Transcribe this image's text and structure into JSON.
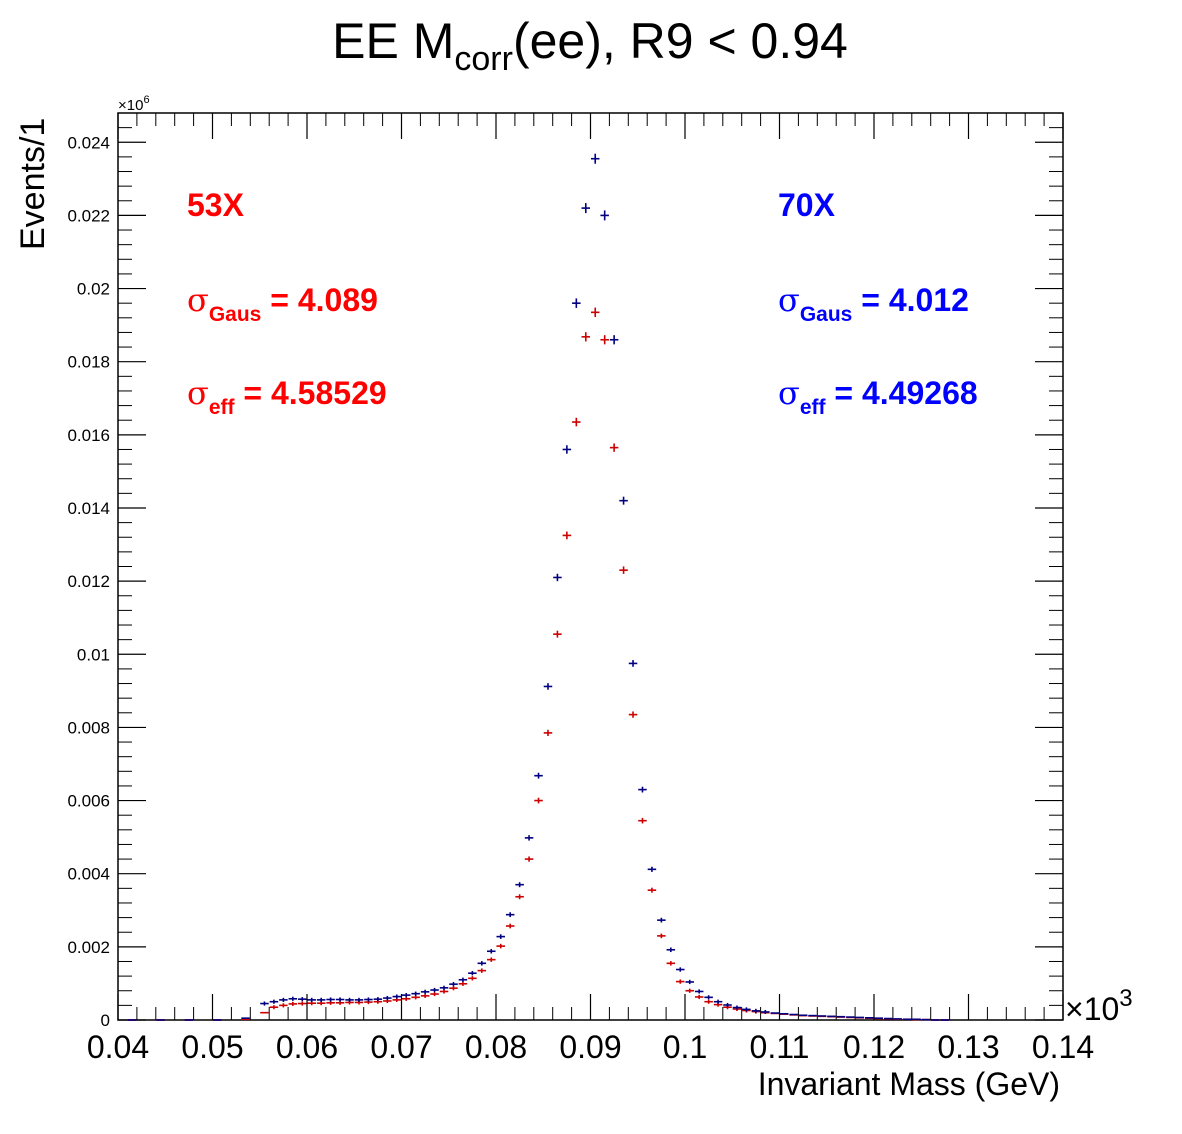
{
  "chart_data": {
    "type": "scatter",
    "title": {
      "main": "EE M",
      "sub": "corr",
      "rest": "(ee), R9 < 0.94"
    },
    "xlabel": "Invariant Mass (GeV)",
    "ylabel": "Events/1",
    "x_exponent_label": "×10",
    "x_exponent_power": "3",
    "y_exponent_label": "×10",
    "y_exponent_power": "6",
    "xlim": [
      0.04,
      0.14
    ],
    "ylim": [
      0,
      0.0248
    ],
    "grid": false,
    "x_ticks": [
      "0.04",
      "0.05",
      "0.06",
      "0.07",
      "0.08",
      "0.09",
      "0.1",
      "0.11",
      "0.12",
      "0.13",
      "0.14"
    ],
    "y_ticks": [
      "0",
      "0.002",
      "0.004",
      "0.006",
      "0.008",
      "0.01",
      "0.012",
      "0.014",
      "0.016",
      "0.018",
      "0.02",
      "0.022",
      "0.024"
    ],
    "annotations": {
      "left": {
        "color": "#ff0000",
        "tag": "53X",
        "gaus_symbol": "σ",
        "gaus_sub": "Gaus",
        "gaus_value": " = 4.089",
        "eff_symbol": "σ",
        "eff_sub": "eff",
        "eff_value": " = 4.58529"
      },
      "right": {
        "color": "#0000ff",
        "tag": "70X",
        "gaus_symbol": "σ",
        "gaus_sub": "Gaus",
        "gaus_value": " = 4.012",
        "eff_symbol": "σ",
        "eff_sub": "eff",
        "eff_value": " = 4.49268"
      }
    },
    "series": [
      {
        "name": "53X",
        "color": "#cc0000",
        "x": [
          0.0415,
          0.0445,
          0.0475,
          0.0505,
          0.0535,
          0.0555,
          0.0565,
          0.0575,
          0.0585,
          0.0595,
          0.0605,
          0.0615,
          0.0625,
          0.0635,
          0.0645,
          0.0655,
          0.0665,
          0.0675,
          0.0685,
          0.0695,
          0.0705,
          0.0715,
          0.0725,
          0.0735,
          0.0745,
          0.0755,
          0.0765,
          0.0775,
          0.0785,
          0.0795,
          0.0805,
          0.0815,
          0.0825,
          0.0835,
          0.0845,
          0.0855,
          0.0865,
          0.0875,
          0.0885,
          0.0895,
          0.0905,
          0.0915,
          0.0925,
          0.0935,
          0.0945,
          0.0955,
          0.0965,
          0.0975,
          0.0985,
          0.0995,
          0.1005,
          0.1015,
          0.1025,
          0.1035,
          0.1045,
          0.1055,
          0.1065,
          0.1075,
          0.1085,
          0.1095,
          0.1105,
          0.1115,
          0.1125,
          0.1135,
          0.1145,
          0.1155,
          0.1165,
          0.1175,
          0.1185,
          0.1195,
          0.1205,
          0.1215,
          0.1225,
          0.1235,
          0.1245,
          0.1255,
          0.1265,
          0.1275
        ],
        "y": [
          0,
          0,
          0,
          0,
          2e-05,
          0.0002,
          0.00035,
          0.0004,
          0.00044,
          0.00045,
          0.00046,
          0.00046,
          0.00047,
          0.00047,
          0.00048,
          0.00048,
          0.00049,
          0.0005,
          0.00052,
          0.00055,
          0.00058,
          0.00062,
          0.00066,
          0.00071,
          0.00078,
          0.00087,
          0.00099,
          0.00114,
          0.00135,
          0.00165,
          0.00202,
          0.00257,
          0.00337,
          0.0044,
          0.006,
          0.00785,
          0.01055,
          0.01325,
          0.01635,
          0.01868,
          0.01935,
          0.0186,
          0.01565,
          0.0123,
          0.00835,
          0.00545,
          0.00355,
          0.0023,
          0.00155,
          0.00105,
          0.0008,
          0.00063,
          0.0005,
          0.00042,
          0.00035,
          0.0003,
          0.00026,
          0.00023,
          0.0002,
          0.00018,
          0.00016,
          0.00014,
          0.00012,
          0.00011,
          0.0001,
          9e-05,
          8e-05,
          7e-05,
          6e-05,
          5e-05,
          4e-05,
          3e-05,
          2e-05,
          2e-05,
          1e-05,
          1e-05,
          0,
          0
        ]
      },
      {
        "name": "70X",
        "color": "#000080",
        "x": [
          0.0415,
          0.0445,
          0.0475,
          0.0505,
          0.0535,
          0.0555,
          0.0565,
          0.0575,
          0.0585,
          0.0595,
          0.0605,
          0.0615,
          0.0625,
          0.0635,
          0.0645,
          0.0655,
          0.0665,
          0.0675,
          0.0685,
          0.0695,
          0.0705,
          0.0715,
          0.0725,
          0.0735,
          0.0745,
          0.0755,
          0.0765,
          0.0775,
          0.0785,
          0.0795,
          0.0805,
          0.0815,
          0.0825,
          0.0835,
          0.0845,
          0.0855,
          0.0865,
          0.0875,
          0.0885,
          0.0895,
          0.0905,
          0.0915,
          0.0925,
          0.0935,
          0.0945,
          0.0955,
          0.0965,
          0.0975,
          0.0985,
          0.0995,
          0.1005,
          0.1015,
          0.1025,
          0.1035,
          0.1045,
          0.1055,
          0.1065,
          0.1075,
          0.1085,
          0.1095,
          0.1105,
          0.1115,
          0.1125,
          0.1135,
          0.1145,
          0.1155,
          0.1165,
          0.1175,
          0.1185,
          0.1195,
          0.1205,
          0.1215,
          0.1225,
          0.1235,
          0.1245,
          0.1255,
          0.1265,
          0.1275
        ],
        "y": [
          0,
          0,
          0,
          0,
          5e-05,
          0.00045,
          0.0005,
          0.00055,
          0.00058,
          0.00057,
          0.00055,
          0.00055,
          0.00056,
          0.00056,
          0.00055,
          0.00055,
          0.00056,
          0.00057,
          0.0006,
          0.00064,
          0.00068,
          0.00072,
          0.00077,
          0.00082,
          0.00088,
          0.00098,
          0.0011,
          0.00128,
          0.00155,
          0.00188,
          0.00228,
          0.00288,
          0.0037,
          0.00498,
          0.00668,
          0.00912,
          0.0121,
          0.0156,
          0.0196,
          0.0222,
          0.02355,
          0.022,
          0.0186,
          0.0142,
          0.00975,
          0.0063,
          0.00412,
          0.00273,
          0.00192,
          0.00138,
          0.00104,
          0.00078,
          0.00062,
          0.0005,
          0.00041,
          0.00034,
          0.00029,
          0.00025,
          0.00022,
          0.00019,
          0.00017,
          0.00015,
          0.00013,
          0.00012,
          0.00011,
          0.0001,
          9e-05,
          8e-05,
          7e-05,
          6e-05,
          5e-05,
          4e-05,
          3e-05,
          2e-05,
          2e-05,
          1e-05,
          0,
          0
        ]
      }
    ]
  }
}
